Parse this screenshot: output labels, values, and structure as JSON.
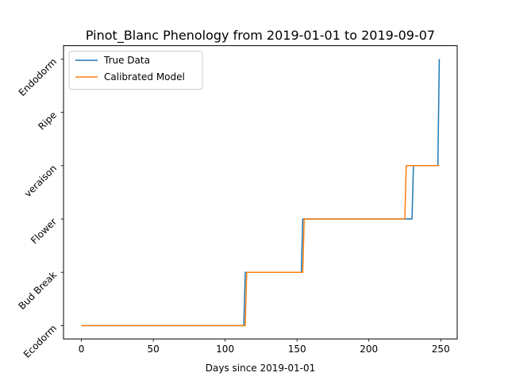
{
  "chart_data": {
    "type": "line",
    "title": "Pinot_Blanc Phenology from 2019-01-01 to 2019-09-07",
    "xlabel": "Days since 2019-01-01",
    "ylabel": "",
    "xlim": [
      -12.45,
      261.45
    ],
    "ylim": [
      -0.25,
      5.25
    ],
    "x_ticks": [
      0,
      50,
      100,
      150,
      200,
      250
    ],
    "y_ticks": [
      {
        "value": 0,
        "label": "Ecodorm"
      },
      {
        "value": 1,
        "label": "Bud Break"
      },
      {
        "value": 2,
        "label": "Flower"
      },
      {
        "value": 3,
        "label": "veraison"
      },
      {
        "value": 4,
        "label": "Ripe"
      },
      {
        "value": 5,
        "label": "Endodorm"
      }
    ],
    "legend_position": "upper-left",
    "series": [
      {
        "name": "True Data",
        "color": "#1f77b4",
        "points": [
          [
            0,
            0
          ],
          [
            113,
            0
          ],
          [
            114,
            1
          ],
          [
            153,
            1
          ],
          [
            154,
            2
          ],
          [
            230,
            2
          ],
          [
            231,
            3
          ],
          [
            248,
            3
          ],
          [
            249,
            5
          ]
        ]
      },
      {
        "name": "Calibrated Model",
        "color": "#ff7f0e",
        "points": [
          [
            0,
            0
          ],
          [
            114,
            0
          ],
          [
            115,
            1
          ],
          [
            154,
            1
          ],
          [
            155,
            2
          ],
          [
            225,
            2
          ],
          [
            226,
            3
          ],
          [
            249,
            3
          ]
        ]
      }
    ]
  }
}
